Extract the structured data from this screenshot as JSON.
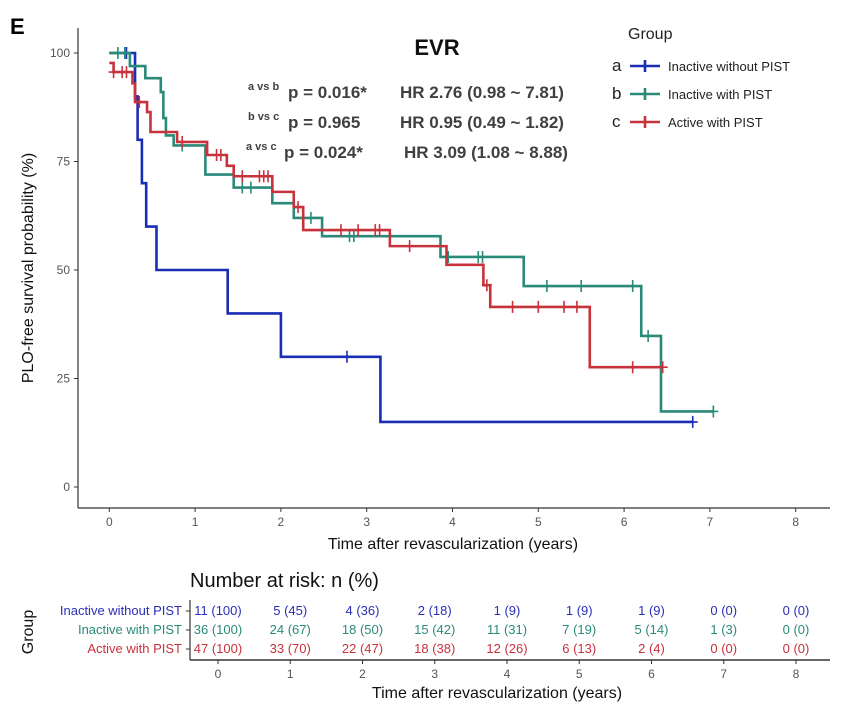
{
  "panel_label": "E",
  "chart_data": {
    "type": "line",
    "subtype": "kaplan-meier",
    "title": "EVR",
    "xlabel": "Time after revascularization (years)",
    "ylabel": "PLO-free survival probability (%)",
    "xlim": [
      0,
      8
    ],
    "ylim": [
      0,
      100
    ],
    "xticks": [
      0,
      1,
      2,
      3,
      4,
      5,
      6,
      7,
      8
    ],
    "yticks": [
      0,
      25,
      50,
      75,
      100
    ],
    "grid": false,
    "legend": {
      "title": "Group",
      "placement": "top-right",
      "entries": [
        {
          "key": "a",
          "name": "Inactive without PIST"
        },
        {
          "key": "b",
          "name": "Inactive with PIST"
        },
        {
          "key": "c",
          "name": "Active with PIST"
        }
      ]
    },
    "comparisons": [
      {
        "label": "a vs b",
        "p": "p = 0.016*",
        "hr": "HR 2.76 (0.98 ~ 7.81)"
      },
      {
        "label": "b vs c",
        "p": "p = 0.965",
        "hr": "HR 0.95 (0.49 ~ 1.82)"
      },
      {
        "label": "a vs c",
        "p": "p = 0.024*",
        "hr": "HR 3.09 (1.08 ~ 8.88)"
      }
    ],
    "series": [
      {
        "name": "Inactive without PIST",
        "color": "#1a2db5",
        "steps": [
          [
            0,
            100
          ],
          [
            0.3,
            90
          ],
          [
            0.33,
            80
          ],
          [
            0.38,
            70
          ],
          [
            0.43,
            60
          ],
          [
            0.55,
            50
          ],
          [
            1.38,
            40
          ],
          [
            2.0,
            30
          ],
          [
            3.16,
            15
          ]
        ],
        "end": 6.8,
        "censored": [
          0.2,
          2.77,
          6.8
        ]
      },
      {
        "name": "Inactive with PIST",
        "color": "#2a8a7a",
        "steps": [
          [
            0,
            100
          ],
          [
            0.24,
            97
          ],
          [
            0.42,
            94.2
          ],
          [
            0.6,
            91
          ],
          [
            0.63,
            85
          ],
          [
            0.66,
            81
          ],
          [
            0.75,
            78.7
          ],
          [
            1.12,
            72
          ],
          [
            1.45,
            69
          ],
          [
            1.9,
            65.4
          ],
          [
            2.15,
            62
          ],
          [
            2.48,
            57.8
          ],
          [
            3.86,
            53
          ],
          [
            4.83,
            46.3
          ],
          [
            6.2,
            34.8
          ],
          [
            6.43,
            17.4
          ]
        ],
        "end": 7.04,
        "censored": [
          0.1,
          0.18,
          0.85,
          1.55,
          1.65,
          2.35,
          2.8,
          2.85,
          3.95,
          4.3,
          4.35,
          5.1,
          5.5,
          6.1,
          6.28,
          7.04
        ]
      },
      {
        "name": "Active with PIST",
        "color": "#c8323c",
        "steps": [
          [
            0,
            97.7
          ],
          [
            0.05,
            95.6
          ],
          [
            0.27,
            93
          ],
          [
            0.3,
            88.7
          ],
          [
            0.44,
            86.4
          ],
          [
            0.48,
            81.8
          ],
          [
            0.79,
            79.5
          ],
          [
            1.14,
            76.5
          ],
          [
            1.37,
            74
          ],
          [
            1.45,
            71.6
          ],
          [
            1.9,
            68
          ],
          [
            2.15,
            64.5
          ],
          [
            2.26,
            59.2
          ],
          [
            3.27,
            55.5
          ],
          [
            3.93,
            51.2
          ],
          [
            4.36,
            46.5
          ],
          [
            4.44,
            41.5
          ],
          [
            5.6,
            27.6
          ]
        ],
        "end": 6.45,
        "censored": [
          0.05,
          0.15,
          0.2,
          0.35,
          0.85,
          1.25,
          1.3,
          1.55,
          1.75,
          1.8,
          1.85,
          2.2,
          2.7,
          2.9,
          3.1,
          3.15,
          3.5,
          4.4,
          4.7,
          5.0,
          5.3,
          5.45,
          6.1,
          6.45
        ]
      }
    ],
    "risk_table": {
      "title": "Number at risk: n (%)",
      "ylabel": "Group",
      "xlabel": "Time after revascularization (years)",
      "times": [
        0,
        1,
        2,
        3,
        4,
        5,
        6,
        7,
        8
      ],
      "rows": [
        {
          "name": "Inactive without PIST",
          "color": "#2b2fb8",
          "values": [
            "11 (100)",
            "5 (45)",
            "4 (36)",
            "2 (18)",
            "1 (9)",
            "1 (9)",
            "1 (9)",
            "0 (0)",
            "0 (0)"
          ]
        },
        {
          "name": "Inactive with PIST",
          "color": "#2a8a7a",
          "values": [
            "36 (100)",
            "24 (67)",
            "18 (50)",
            "15 (42)",
            "11 (31)",
            "7 (19)",
            "5 (14)",
            "1 (3)",
            "0 (0)"
          ]
        },
        {
          "name": "Active with PIST",
          "color": "#c8323c",
          "values": [
            "47 (100)",
            "33 (70)",
            "22 (47)",
            "18 (38)",
            "12 (26)",
            "6 (13)",
            "2 (4)",
            "0 (0)",
            "0 (0)"
          ]
        }
      ]
    }
  }
}
